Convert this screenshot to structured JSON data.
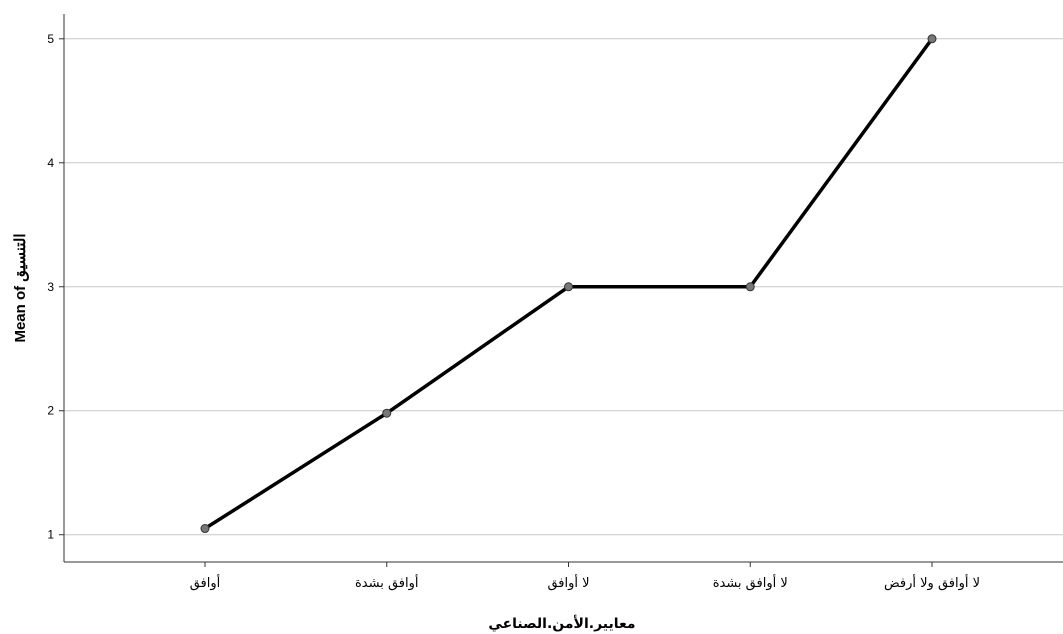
{
  "chart_data": {
    "type": "line",
    "title": "",
    "categories": [
      "أوافق",
      "أوافق بشدة",
      "لا أوافق",
      "لا أوافق بشدة",
      "لا أوافق ولا أرفض"
    ],
    "series": [
      {
        "values": [
          1.05,
          1.98,
          3.0,
          3.0,
          5.0
        ]
      }
    ],
    "xlabel": "معايير.الأمن.الصناعي",
    "ylabel": "Mean of التنسيق",
    "ylim": [
      0.78,
      5.2
    ],
    "yticks": [
      1,
      2,
      3,
      4,
      5
    ],
    "grid": true,
    "legend": "none",
    "colors": {
      "line": "#000000",
      "marker_fill": "#777777",
      "marker_stroke": "#333333",
      "grid": "#c8c8c8",
      "axis": "#333333"
    }
  }
}
